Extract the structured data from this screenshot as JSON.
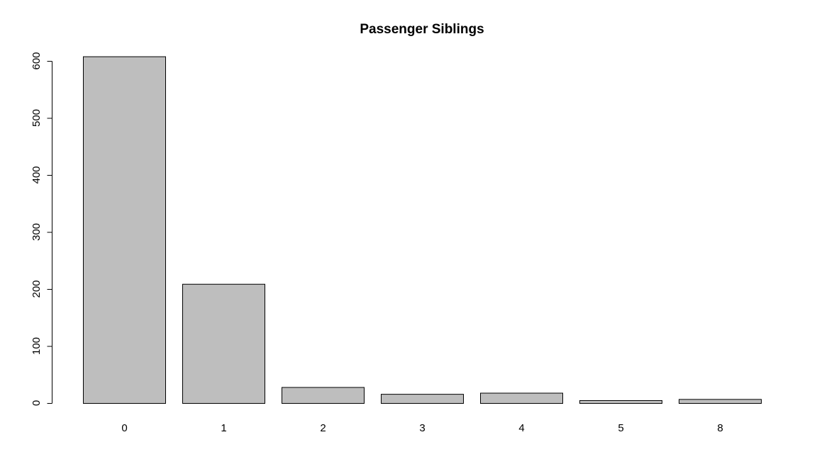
{
  "chart_data": {
    "type": "bar",
    "title": "Passenger Siblings",
    "xlabel": "",
    "ylabel": "",
    "categories": [
      "0",
      "1",
      "2",
      "3",
      "4",
      "5",
      "8"
    ],
    "values": [
      608,
      209,
      28,
      16,
      18,
      5,
      7
    ],
    "ylim": [
      0,
      600
    ],
    "yticks": [
      0,
      100,
      200,
      300,
      400,
      500,
      600
    ],
    "grid": false,
    "legend": "none",
    "colors": {
      "bar_fill": "#bebebe",
      "bar_stroke": "#000000",
      "axis": "#000000",
      "background": "#ffffff"
    }
  }
}
